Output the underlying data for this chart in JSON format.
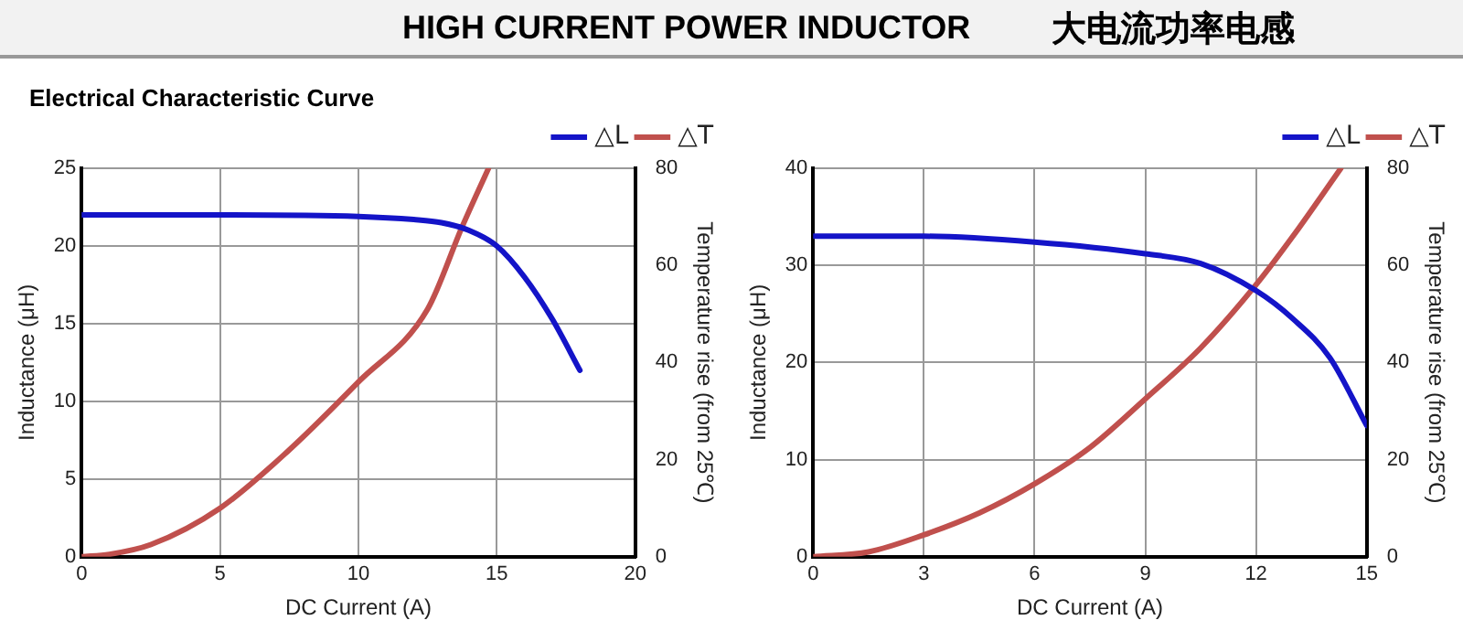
{
  "chart_data": [
    {
      "type": "line",
      "title": "HIGH CURRENT POWER INDUCTOR",
      "subtitle": "Electrical Characteristic Curve",
      "annotations": [
        "大电流功率电感"
      ],
      "xlabel": "DC Current (A)",
      "ylabel": "Inductance (μH)",
      "y2label": "Temperature rise (from 25℃)",
      "xlim": [
        0,
        20
      ],
      "xticks": [
        0,
        5,
        10,
        15,
        20
      ],
      "ylim": [
        0,
        25
      ],
      "yticks": [
        0,
        5,
        10,
        15,
        20,
        25
      ],
      "y2lim": [
        0,
        80
      ],
      "y2ticks": [
        0,
        20,
        40,
        60,
        80
      ],
      "grid": true,
      "legend": "top right",
      "marker": "none",
      "line_style": "solid",
      "series": [
        {
          "name": "△L",
          "color": "#1414c8",
          "x": [
            0,
            5,
            10,
            12,
            13,
            14,
            15,
            16,
            17,
            18
          ],
          "values": [
            22,
            22,
            21.9,
            21.7,
            21.5,
            21,
            20,
            18,
            15.3,
            12
          ]
        },
        {
          "name": "△T",
          "color": "#c0504d",
          "axis": "y2",
          "x": [
            0,
            1,
            2.5,
            5,
            7.5,
            10,
            12.5,
            13.75,
            14.7
          ],
          "values": [
            0,
            0.5,
            2.5,
            10,
            22,
            36,
            51,
            68,
            80
          ]
        }
      ]
    },
    {
      "type": "line",
      "xlabel": "DC Current (A)",
      "ylabel": "Inductance (μH)",
      "y2label": "Temperature rise (from 25℃)",
      "xlim": [
        0,
        15
      ],
      "xticks": [
        0,
        3,
        6,
        9,
        12,
        15
      ],
      "ylim": [
        0,
        40
      ],
      "yticks": [
        0,
        10,
        20,
        30,
        40
      ],
      "y2lim": [
        0,
        80
      ],
      "y2ticks": [
        0,
        20,
        40,
        60,
        80
      ],
      "grid": true,
      "legend": "top right",
      "marker": "none",
      "line_style": "solid",
      "series": [
        {
          "name": "△L",
          "color": "#1414c8",
          "x": [
            0,
            3,
            6,
            9,
            10.5,
            12,
            13,
            14,
            15
          ],
          "values": [
            33,
            33,
            32.4,
            31.2,
            30.2,
            27.4,
            24.5,
            20.5,
            13.5
          ]
        },
        {
          "name": "△T",
          "color": "#c0504d",
          "axis": "y2",
          "x": [
            0,
            1.5,
            3,
            4.5,
            6,
            7.5,
            9,
            10.5,
            12,
            13,
            14.3
          ],
          "values": [
            0,
            1,
            4.5,
            9,
            15,
            22.5,
            32.5,
            43,
            56,
            66,
            80
          ]
        }
      ]
    }
  ]
}
